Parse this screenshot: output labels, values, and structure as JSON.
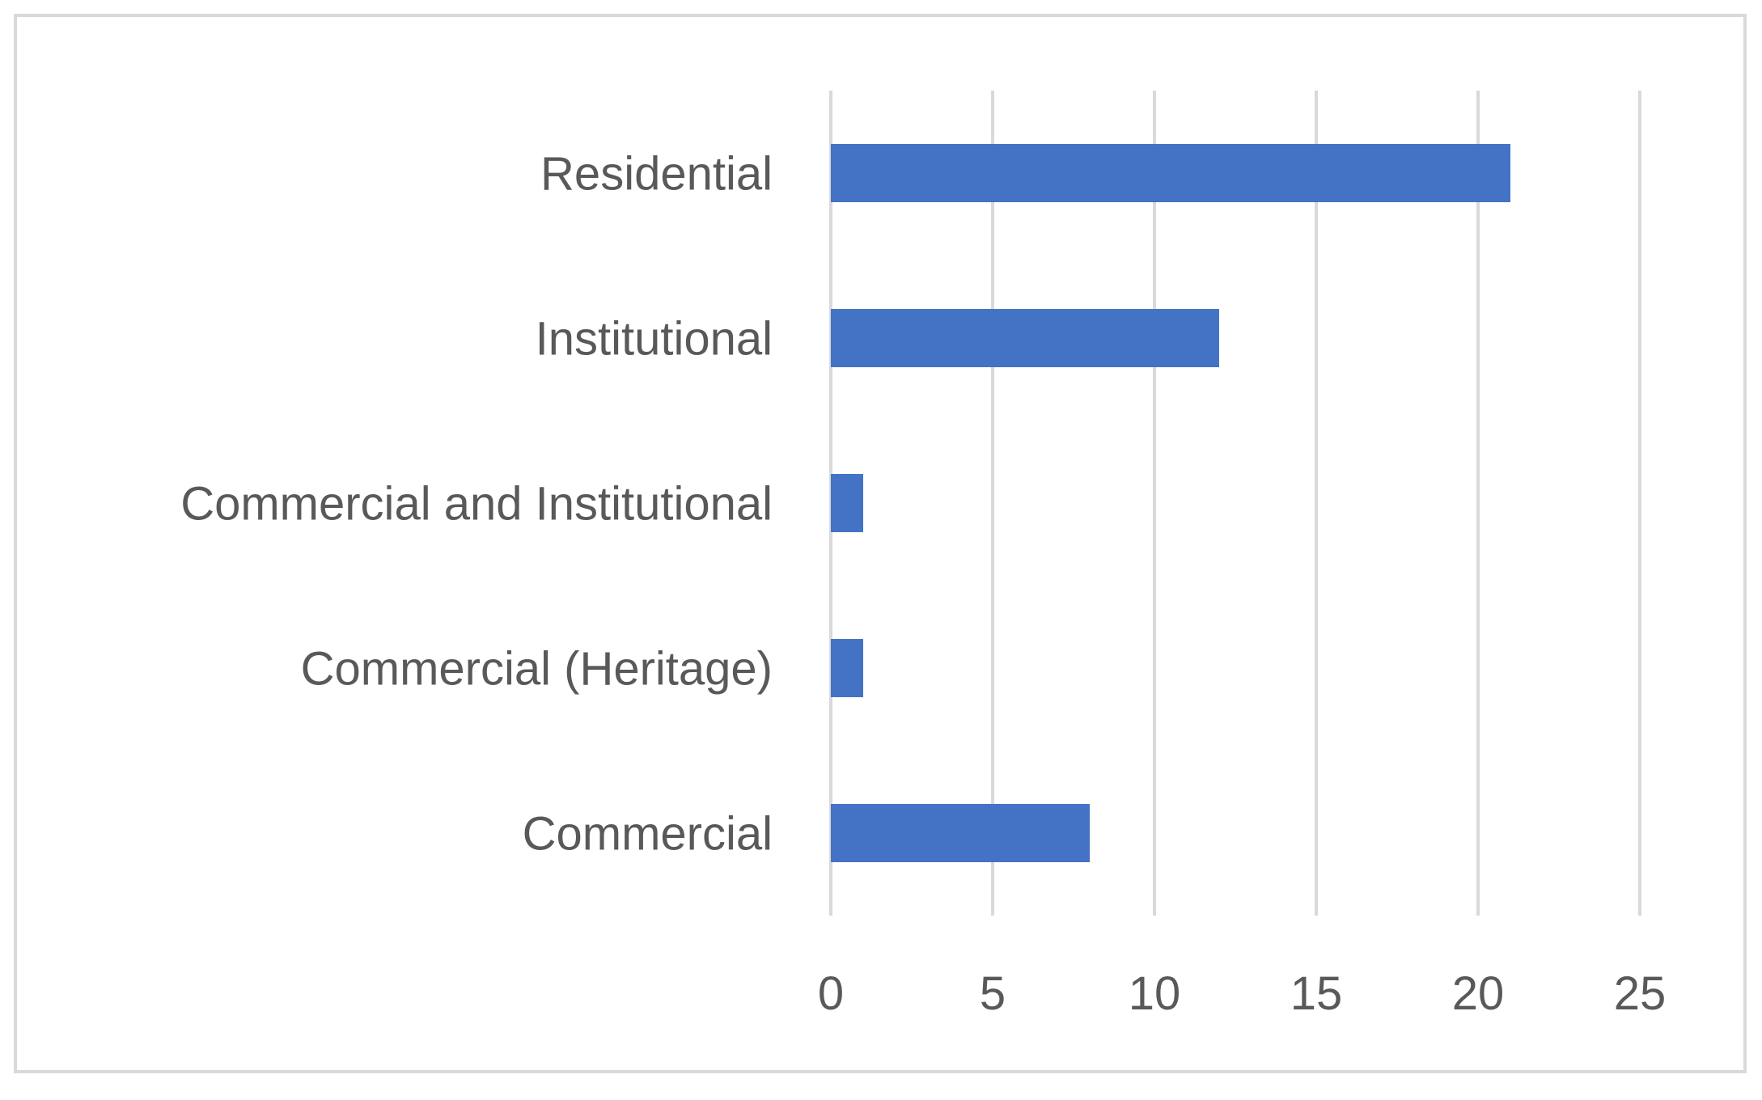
{
  "chart_data": {
    "type": "bar",
    "orientation": "horizontal",
    "categories": [
      "Residential",
      "Institutional",
      "Commercial and Institutional",
      "Commercial (Heritage)",
      "Commercial"
    ],
    "values": [
      21,
      12,
      1,
      1,
      8
    ],
    "xlim": [
      0,
      25
    ],
    "x_ticks": [
      "0",
      "5",
      "10",
      "15",
      "20",
      "25"
    ],
    "title": "",
    "xlabel": "",
    "ylabel": "",
    "grid": "vertical",
    "legend": "none",
    "bar_color": "#4472C4",
    "gridline_color": "#D9D9D9",
    "border_color": "#D9D9D9",
    "text_color": "#595959"
  }
}
